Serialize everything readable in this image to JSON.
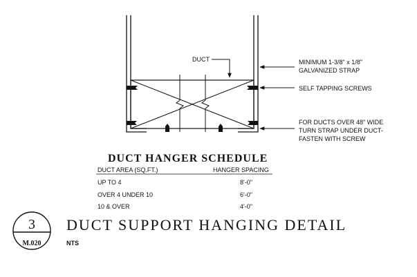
{
  "drawing": {
    "duct_label": "DUCT",
    "callouts": [
      {
        "lines": [
          "MINIMUM 1-3/8\" x 1/8\"",
          "GALVANIZED STRAP"
        ]
      },
      {
        "lines": [
          "SELF TAPPING SCREWS"
        ]
      },
      {
        "lines": [
          "FOR DUCTS OVER 48\" WIDE",
          "TURN STRAP UNDER DUCT-",
          "FASTEN WITH SCREW"
        ]
      }
    ]
  },
  "schedule": {
    "title": "DUCT HANGER SCHEDULE",
    "col_area": "DUCT AREA (SQ.FT.)",
    "col_spacing": "HANGER SPACING",
    "rows": [
      {
        "area": "UP TO 4",
        "spacing": "8'-0\""
      },
      {
        "area": "OVER 4 UNDER 10",
        "spacing": "6'-0\""
      },
      {
        "area": "10 & OVER",
        "spacing": "4'-0\""
      }
    ]
  },
  "title_block": {
    "detail_number": "3",
    "sheet": "M.020",
    "title": "DUCT SUPPORT HANGING DETAIL",
    "scale": "NTS"
  }
}
